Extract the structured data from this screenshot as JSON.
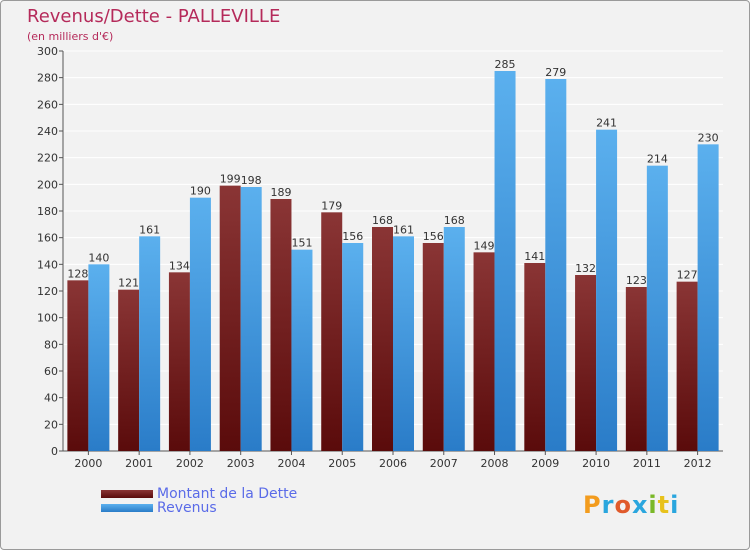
{
  "title": "Revenus/Dette - PALLEVILLE",
  "subtitle": "(en milliers d'€)",
  "colors": {
    "background": "#f2f2f2",
    "grid": "#ffffff",
    "dette_dark": "#5a0b0b",
    "dette_light": "#8a3535",
    "revenus_dark": "#2a7cc8",
    "revenus_light": "#5bb0ee",
    "title": "#b52a5a",
    "legend_text": "#5a6be8"
  },
  "legend": {
    "dette_label": "Montant de la Dette",
    "revenus_label": "Revenus"
  },
  "logo": {
    "letters": [
      "P",
      "r",
      "o",
      "x",
      "i",
      "t",
      "i"
    ],
    "colors": [
      "#f39c1e",
      "#2aa6de",
      "#e05a2b",
      "#2aa6de",
      "#7ab828",
      "#e8c21c",
      "#2aa6de"
    ]
  },
  "chart_data": {
    "type": "bar",
    "title": "Revenus/Dette - PALLEVILLE",
    "subtitle": "(en milliers d'€)",
    "xlabel": "",
    "ylabel": "",
    "ylim": [
      0,
      300
    ],
    "y_ticks": [
      0,
      20,
      40,
      60,
      80,
      100,
      120,
      140,
      160,
      180,
      200,
      220,
      240,
      260,
      280,
      300
    ],
    "grid": true,
    "legend_position": "bottom-left",
    "categories": [
      "2000",
      "2001",
      "2002",
      "2003",
      "2004",
      "2005",
      "2006",
      "2007",
      "2008",
      "2009",
      "2010",
      "2011",
      "2012"
    ],
    "series": [
      {
        "name": "Montant de la Dette",
        "values": [
          128,
          121,
          134,
          199,
          189,
          179,
          168,
          156,
          149,
          141,
          132,
          123,
          127
        ]
      },
      {
        "name": "Revenus",
        "values": [
          140,
          161,
          190,
          198,
          151,
          156,
          161,
          168,
          285,
          279,
          241,
          214,
          230
        ]
      }
    ]
  }
}
